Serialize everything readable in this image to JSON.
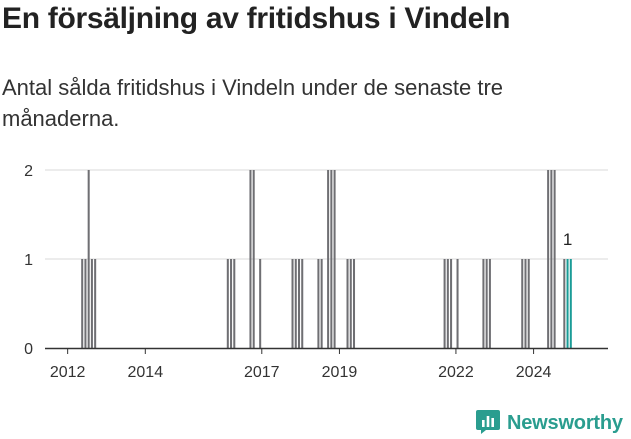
{
  "header": {
    "title": "En försäljning av fritidshus i Vindeln",
    "subtitle": "Antal sålda fritidshus i Vindeln under de senaste tre månaderna."
  },
  "chart_data": {
    "type": "bar",
    "y_ticks": [
      0,
      1,
      2
    ],
    "ylim": [
      0,
      2
    ],
    "x_ticks": [
      "2012",
      "2014",
      "2017",
      "2019",
      "2022",
      "2024"
    ],
    "x_tick_dates": [
      "2012-01",
      "2014-01",
      "2017-01",
      "2019-01",
      "2022-01",
      "2024-01"
    ],
    "xlim": [
      "2011-06",
      "2025-12"
    ],
    "grid": true,
    "colors": {
      "bar": "#6f6f73",
      "highlight": "#1a9c97",
      "grid": "#d8d8d8",
      "axis": "#333333"
    },
    "bars": [
      {
        "date": "2012-05",
        "value": 1
      },
      {
        "date": "2012-06",
        "value": 1
      },
      {
        "date": "2012-07",
        "value": 2
      },
      {
        "date": "2012-08",
        "value": 1
      },
      {
        "date": "2012-09",
        "value": 1
      },
      {
        "date": "2016-02",
        "value": 1
      },
      {
        "date": "2016-03",
        "value": 1
      },
      {
        "date": "2016-04",
        "value": 1
      },
      {
        "date": "2016-09",
        "value": 2
      },
      {
        "date": "2016-10",
        "value": 2
      },
      {
        "date": "2016-12",
        "value": 1
      },
      {
        "date": "2017-10",
        "value": 1
      },
      {
        "date": "2017-11",
        "value": 1
      },
      {
        "date": "2017-12",
        "value": 1
      },
      {
        "date": "2018-01",
        "value": 1
      },
      {
        "date": "2018-06",
        "value": 1
      },
      {
        "date": "2018-07",
        "value": 1
      },
      {
        "date": "2018-09",
        "value": 2
      },
      {
        "date": "2018-10",
        "value": 2
      },
      {
        "date": "2018-11",
        "value": 2
      },
      {
        "date": "2019-03",
        "value": 1
      },
      {
        "date": "2019-04",
        "value": 1
      },
      {
        "date": "2019-05",
        "value": 1
      },
      {
        "date": "2021-09",
        "value": 1
      },
      {
        "date": "2021-10",
        "value": 1
      },
      {
        "date": "2021-11",
        "value": 1
      },
      {
        "date": "2022-01",
        "value": 1
      },
      {
        "date": "2022-09",
        "value": 1
      },
      {
        "date": "2022-10",
        "value": 1
      },
      {
        "date": "2022-11",
        "value": 1
      },
      {
        "date": "2023-09",
        "value": 1
      },
      {
        "date": "2023-10",
        "value": 1
      },
      {
        "date": "2023-11",
        "value": 1
      },
      {
        "date": "2024-05",
        "value": 2
      },
      {
        "date": "2024-06",
        "value": 2
      },
      {
        "date": "2024-07",
        "value": 2
      },
      {
        "date": "2024-10",
        "value": 1
      },
      {
        "date": "2024-11",
        "value": 1,
        "highlight": true,
        "label": "1"
      },
      {
        "date": "2024-12",
        "value": 1,
        "highlight": true
      }
    ]
  },
  "logo": {
    "text": "Newsworthy",
    "icon": "bar-chart-icon"
  }
}
